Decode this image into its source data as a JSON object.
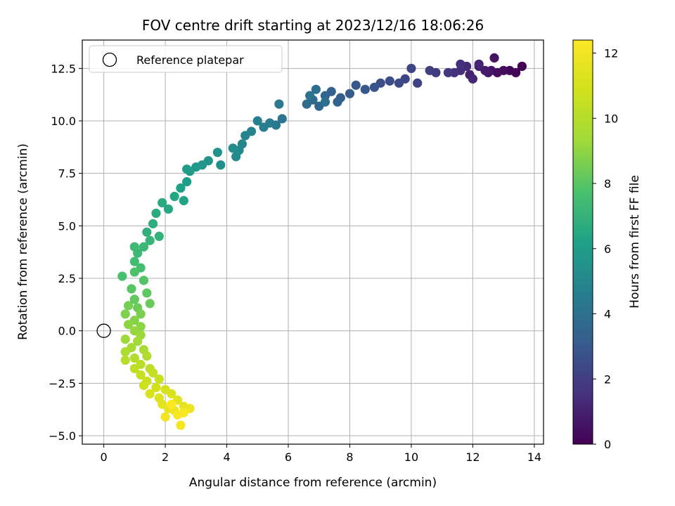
{
  "chart_data": {
    "type": "scatter",
    "title": "FOV centre drift starting at 2023/12/16 18:06:26",
    "xlabel": "Angular distance from reference (arcmin)",
    "ylabel": "Rotation from reference (arcmin)",
    "xlim": [
      -0.7,
      14.3
    ],
    "ylim": [
      -5.4,
      13.85
    ],
    "xticks": [
      0,
      2,
      4,
      6,
      8,
      10,
      12,
      14
    ],
    "xtick_labels": [
      "0",
      "2",
      "4",
      "6",
      "8",
      "10",
      "12",
      "14"
    ],
    "yticks": [
      -5.0,
      -2.5,
      0.0,
      2.5,
      5.0,
      7.5,
      10.0,
      12.5
    ],
    "ytick_labels": [
      "−5.0",
      "−2.5",
      "0.0",
      "2.5",
      "5.0",
      "7.5",
      "10.0",
      "12.5"
    ],
    "grid": true,
    "legend": {
      "placement": "upper-left",
      "entries": [
        "Reference platepar"
      ]
    },
    "reference_point": {
      "label": "Reference platepar",
      "x": 0,
      "y": 0
    },
    "colorbar": {
      "label": "Hours from first FF file",
      "range": [
        0,
        12.4
      ],
      "ticks": [
        0,
        2,
        4,
        6,
        8,
        10,
        12
      ],
      "tick_labels": [
        "0",
        "2",
        "4",
        "6",
        "8",
        "10",
        "12"
      ],
      "colormap": "viridis"
    },
    "points": [
      {
        "x": 13.6,
        "y": 12.6,
        "t": 0.0
      },
      {
        "x": 13.4,
        "y": 12.3,
        "t": 0.1
      },
      {
        "x": 13.2,
        "y": 12.4,
        "t": 0.2
      },
      {
        "x": 13.0,
        "y": 12.4,
        "t": 0.3
      },
      {
        "x": 12.8,
        "y": 12.3,
        "t": 0.4
      },
      {
        "x": 12.6,
        "y": 12.4,
        "t": 0.5
      },
      {
        "x": 12.7,
        "y": 13.0,
        "t": 0.6
      },
      {
        "x": 12.5,
        "y": 12.3,
        "t": 0.7
      },
      {
        "x": 12.4,
        "y": 12.4,
        "t": 0.8
      },
      {
        "x": 12.2,
        "y": 12.6,
        "t": 0.9
      },
      {
        "x": 11.9,
        "y": 12.2,
        "t": 1.0
      },
      {
        "x": 12.2,
        "y": 12.7,
        "t": 1.1
      },
      {
        "x": 12.0,
        "y": 12.0,
        "t": 1.2
      },
      {
        "x": 11.8,
        "y": 12.6,
        "t": 1.3
      },
      {
        "x": 11.6,
        "y": 12.4,
        "t": 1.4
      },
      {
        "x": 11.6,
        "y": 12.7,
        "t": 1.5
      },
      {
        "x": 11.4,
        "y": 12.3,
        "t": 1.6
      },
      {
        "x": 11.2,
        "y": 12.3,
        "t": 1.7
      },
      {
        "x": 10.8,
        "y": 12.3,
        "t": 1.9
      },
      {
        "x": 10.6,
        "y": 12.4,
        "t": 2.0
      },
      {
        "x": 10.2,
        "y": 11.8,
        "t": 2.1
      },
      {
        "x": 10.0,
        "y": 12.5,
        "t": 2.2
      },
      {
        "x": 9.8,
        "y": 12.0,
        "t": 2.3
      },
      {
        "x": 9.6,
        "y": 11.8,
        "t": 2.4
      },
      {
        "x": 9.3,
        "y": 11.9,
        "t": 2.5
      },
      {
        "x": 9.0,
        "y": 11.8,
        "t": 2.6
      },
      {
        "x": 8.8,
        "y": 11.6,
        "t": 2.8
      },
      {
        "x": 8.5,
        "y": 11.5,
        "t": 2.9
      },
      {
        "x": 8.2,
        "y": 11.7,
        "t": 3.0
      },
      {
        "x": 8.0,
        "y": 11.3,
        "t": 3.1
      },
      {
        "x": 7.7,
        "y": 11.1,
        "t": 3.2
      },
      {
        "x": 7.4,
        "y": 11.4,
        "t": 3.3
      },
      {
        "x": 7.6,
        "y": 10.9,
        "t": 3.4
      },
      {
        "x": 7.2,
        "y": 11.2,
        "t": 3.5
      },
      {
        "x": 7.0,
        "y": 10.7,
        "t": 3.6
      },
      {
        "x": 6.8,
        "y": 11.0,
        "t": 3.7
      },
      {
        "x": 6.6,
        "y": 10.8,
        "t": 3.8
      },
      {
        "x": 6.9,
        "y": 11.5,
        "t": 3.9
      },
      {
        "x": 7.2,
        "y": 10.9,
        "t": 4.0
      },
      {
        "x": 6.7,
        "y": 11.2,
        "t": 4.1
      },
      {
        "x": 5.8,
        "y": 10.1,
        "t": 4.2
      },
      {
        "x": 5.7,
        "y": 10.8,
        "t": 4.3
      },
      {
        "x": 5.6,
        "y": 9.8,
        "t": 4.4
      },
      {
        "x": 5.4,
        "y": 9.9,
        "t": 4.5
      },
      {
        "x": 5.2,
        "y": 9.7,
        "t": 4.6
      },
      {
        "x": 5.0,
        "y": 10.0,
        "t": 4.7
      },
      {
        "x": 4.8,
        "y": 9.5,
        "t": 4.8
      },
      {
        "x": 4.6,
        "y": 9.3,
        "t": 4.9
      },
      {
        "x": 4.5,
        "y": 8.9,
        "t": 5.0
      },
      {
        "x": 4.4,
        "y": 8.6,
        "t": 5.1
      },
      {
        "x": 4.3,
        "y": 8.3,
        "t": 5.2
      },
      {
        "x": 4.2,
        "y": 8.7,
        "t": 5.3
      },
      {
        "x": 3.8,
        "y": 7.9,
        "t": 5.4
      },
      {
        "x": 3.7,
        "y": 8.5,
        "t": 5.5
      },
      {
        "x": 3.4,
        "y": 8.1,
        "t": 5.6
      },
      {
        "x": 3.2,
        "y": 7.9,
        "t": 5.7
      },
      {
        "x": 3.0,
        "y": 7.8,
        "t": 5.8
      },
      {
        "x": 2.8,
        "y": 7.6,
        "t": 5.9
      },
      {
        "x": 2.7,
        "y": 7.7,
        "t": 6.0
      },
      {
        "x": 2.7,
        "y": 7.1,
        "t": 6.1
      },
      {
        "x": 2.5,
        "y": 6.8,
        "t": 6.2
      },
      {
        "x": 2.6,
        "y": 6.2,
        "t": 6.3
      },
      {
        "x": 2.3,
        "y": 6.4,
        "t": 6.4
      },
      {
        "x": 2.1,
        "y": 5.8,
        "t": 6.5
      },
      {
        "x": 1.9,
        "y": 6.1,
        "t": 6.6
      },
      {
        "x": 1.7,
        "y": 5.6,
        "t": 6.7
      },
      {
        "x": 1.6,
        "y": 5.1,
        "t": 6.8
      },
      {
        "x": 1.4,
        "y": 4.7,
        "t": 6.9
      },
      {
        "x": 1.8,
        "y": 4.5,
        "t": 7.0
      },
      {
        "x": 1.5,
        "y": 4.3,
        "t": 7.1
      },
      {
        "x": 1.3,
        "y": 4.0,
        "t": 7.2
      },
      {
        "x": 1.1,
        "y": 3.7,
        "t": 7.3
      },
      {
        "x": 1.0,
        "y": 4.0,
        "t": 7.4
      },
      {
        "x": 1.0,
        "y": 3.3,
        "t": 7.5
      },
      {
        "x": 1.2,
        "y": 3.0,
        "t": 7.6
      },
      {
        "x": 0.6,
        "y": 2.6,
        "t": 7.7
      },
      {
        "x": 1.0,
        "y": 2.8,
        "t": 7.8
      },
      {
        "x": 1.3,
        "y": 2.4,
        "t": 7.9
      },
      {
        "x": 0.9,
        "y": 2.0,
        "t": 8.0
      },
      {
        "x": 1.4,
        "y": 1.8,
        "t": 8.1
      },
      {
        "x": 1.0,
        "y": 1.5,
        "t": 8.2
      },
      {
        "x": 1.5,
        "y": 1.3,
        "t": 8.3
      },
      {
        "x": 1.1,
        "y": 1.1,
        "t": 8.4
      },
      {
        "x": 0.8,
        "y": 1.2,
        "t": 8.5
      },
      {
        "x": 1.2,
        "y": 0.8,
        "t": 8.6
      },
      {
        "x": 0.7,
        "y": 0.8,
        "t": 8.7
      },
      {
        "x": 1.0,
        "y": 0.5,
        "t": 8.8
      },
      {
        "x": 1.2,
        "y": 0.2,
        "t": 8.9
      },
      {
        "x": 0.8,
        "y": 0.3,
        "t": 9.0
      },
      {
        "x": 1.0,
        "y": 0.0,
        "t": 9.1
      },
      {
        "x": 1.2,
        "y": -0.2,
        "t": 9.2
      },
      {
        "x": 0.7,
        "y": -0.4,
        "t": 9.3
      },
      {
        "x": 1.1,
        "y": -0.5,
        "t": 9.4
      },
      {
        "x": 0.9,
        "y": -0.8,
        "t": 9.5
      },
      {
        "x": 1.3,
        "y": -0.9,
        "t": 9.6
      },
      {
        "x": 0.7,
        "y": -1.0,
        "t": 9.7
      },
      {
        "x": 1.4,
        "y": -1.2,
        "t": 9.8
      },
      {
        "x": 1.0,
        "y": -1.3,
        "t": 9.9
      },
      {
        "x": 0.7,
        "y": -1.4,
        "t": 10.0
      },
      {
        "x": 1.2,
        "y": -1.6,
        "t": 10.1
      },
      {
        "x": 1.5,
        "y": -1.8,
        "t": 10.2
      },
      {
        "x": 1.0,
        "y": -1.8,
        "t": 10.3
      },
      {
        "x": 1.6,
        "y": -2.0,
        "t": 10.4
      },
      {
        "x": 1.2,
        "y": -2.1,
        "t": 10.5
      },
      {
        "x": 1.8,
        "y": -2.3,
        "t": 10.6
      },
      {
        "x": 1.4,
        "y": -2.4,
        "t": 10.7
      },
      {
        "x": 1.3,
        "y": -2.6,
        "t": 10.8
      },
      {
        "x": 1.7,
        "y": -2.7,
        "t": 10.9
      },
      {
        "x": 2.0,
        "y": -2.8,
        "t": 11.0
      },
      {
        "x": 1.5,
        "y": -3.0,
        "t": 11.1
      },
      {
        "x": 2.2,
        "y": -3.0,
        "t": 11.2
      },
      {
        "x": 1.8,
        "y": -3.2,
        "t": 11.3
      },
      {
        "x": 2.4,
        "y": -3.3,
        "t": 11.4
      },
      {
        "x": 1.9,
        "y": -3.5,
        "t": 11.5
      },
      {
        "x": 2.6,
        "y": -3.6,
        "t": 11.6
      },
      {
        "x": 2.1,
        "y": -3.7,
        "t": 11.7
      },
      {
        "x": 2.3,
        "y": -3.8,
        "t": 11.8
      },
      {
        "x": 2.8,
        "y": -3.7,
        "t": 11.9
      },
      {
        "x": 2.0,
        "y": -4.1,
        "t": 12.0
      },
      {
        "x": 2.5,
        "y": -4.5,
        "t": 12.1
      },
      {
        "x": 2.6,
        "y": -3.9,
        "t": 12.2
      },
      {
        "x": 2.4,
        "y": -4.0,
        "t": 12.3
      },
      {
        "x": 2.2,
        "y": -3.5,
        "t": 12.35
      }
    ]
  }
}
